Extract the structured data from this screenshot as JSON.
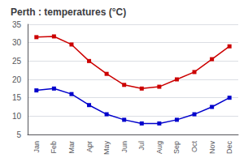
{
  "chart_data": {
    "type": "line",
    "title": "Perth : temperatures (°C)",
    "categories": [
      "Jan",
      "Feb",
      "Mar",
      "Apr",
      "May",
      "Jun",
      "Jul",
      "Aug",
      "Sep",
      "Oct",
      "Nov",
      "Dec"
    ],
    "series": [
      {
        "color": "#cc0000",
        "marker": "square",
        "values": [
          31.5,
          31.7,
          29.5,
          25.0,
          21.5,
          18.5,
          17.5,
          18.0,
          20.0,
          22.0,
          25.5,
          29.0
        ]
      },
      {
        "color": "#0000cc",
        "marker": "square",
        "values": [
          17.0,
          17.5,
          16.0,
          13.0,
          10.5,
          9.0,
          8.0,
          8.0,
          9.0,
          10.5,
          12.5,
          15.0
        ]
      }
    ],
    "ylim": [
      5,
      35
    ],
    "yticks": [
      5,
      10,
      15,
      20,
      25,
      30,
      35
    ],
    "grid": true
  }
}
